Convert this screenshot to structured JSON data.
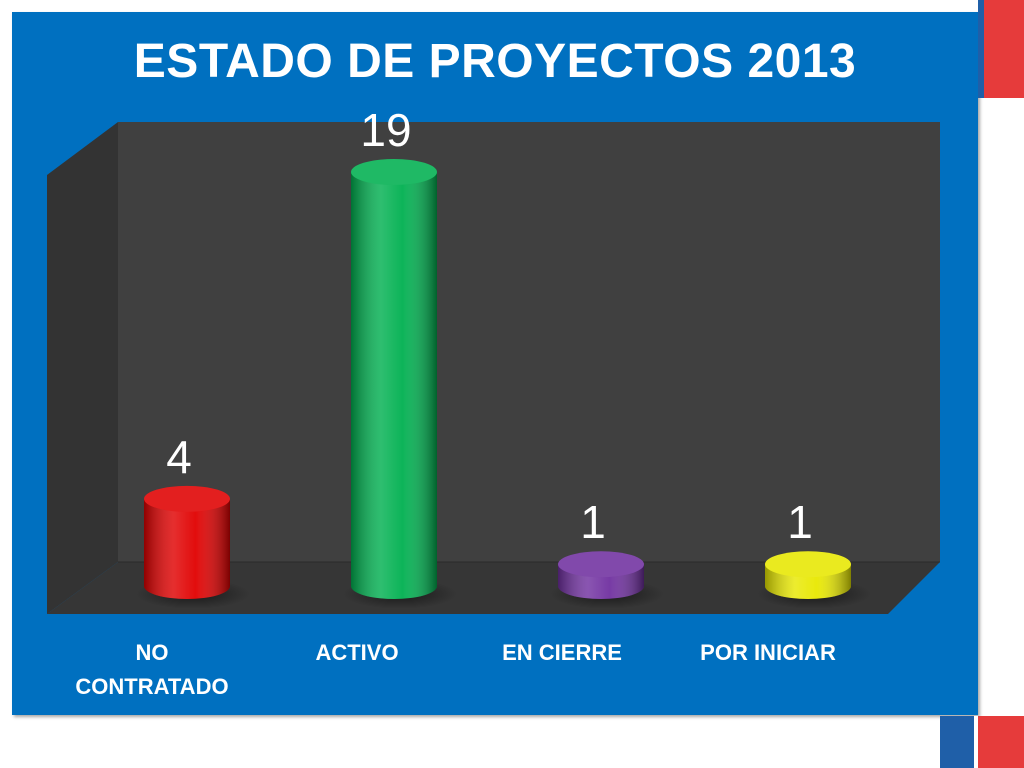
{
  "chart_data": {
    "type": "bar",
    "title": "ESTADO DE PROYECTOS 2013",
    "categories": [
      "NO CONTRATADO",
      "ACTIVO",
      "EN CIERRE",
      "POR INICIAR"
    ],
    "category_lines": [
      [
        "NO",
        "CONTRATADO"
      ],
      [
        "ACTIVO"
      ],
      [
        "EN CIERRE"
      ],
      [
        "POR INICIAR"
      ]
    ],
    "values": [
      4,
      19,
      1,
      1
    ],
    "data_labels": [
      "4",
      "19",
      "1",
      "1"
    ],
    "bar_colors": [
      "#e00000",
      "#00b050",
      "#7030a0",
      "#e8e800"
    ],
    "ylim": [
      0,
      20
    ],
    "grid": false,
    "style": "3d-cylinder"
  },
  "colors": {
    "panel": "#0070c0",
    "plot_back_wall": "#404040",
    "plot_side_wall": "#333333",
    "plot_floor": "#363636",
    "text": "#ffffff",
    "accent_red": "#e63b3b"
  }
}
